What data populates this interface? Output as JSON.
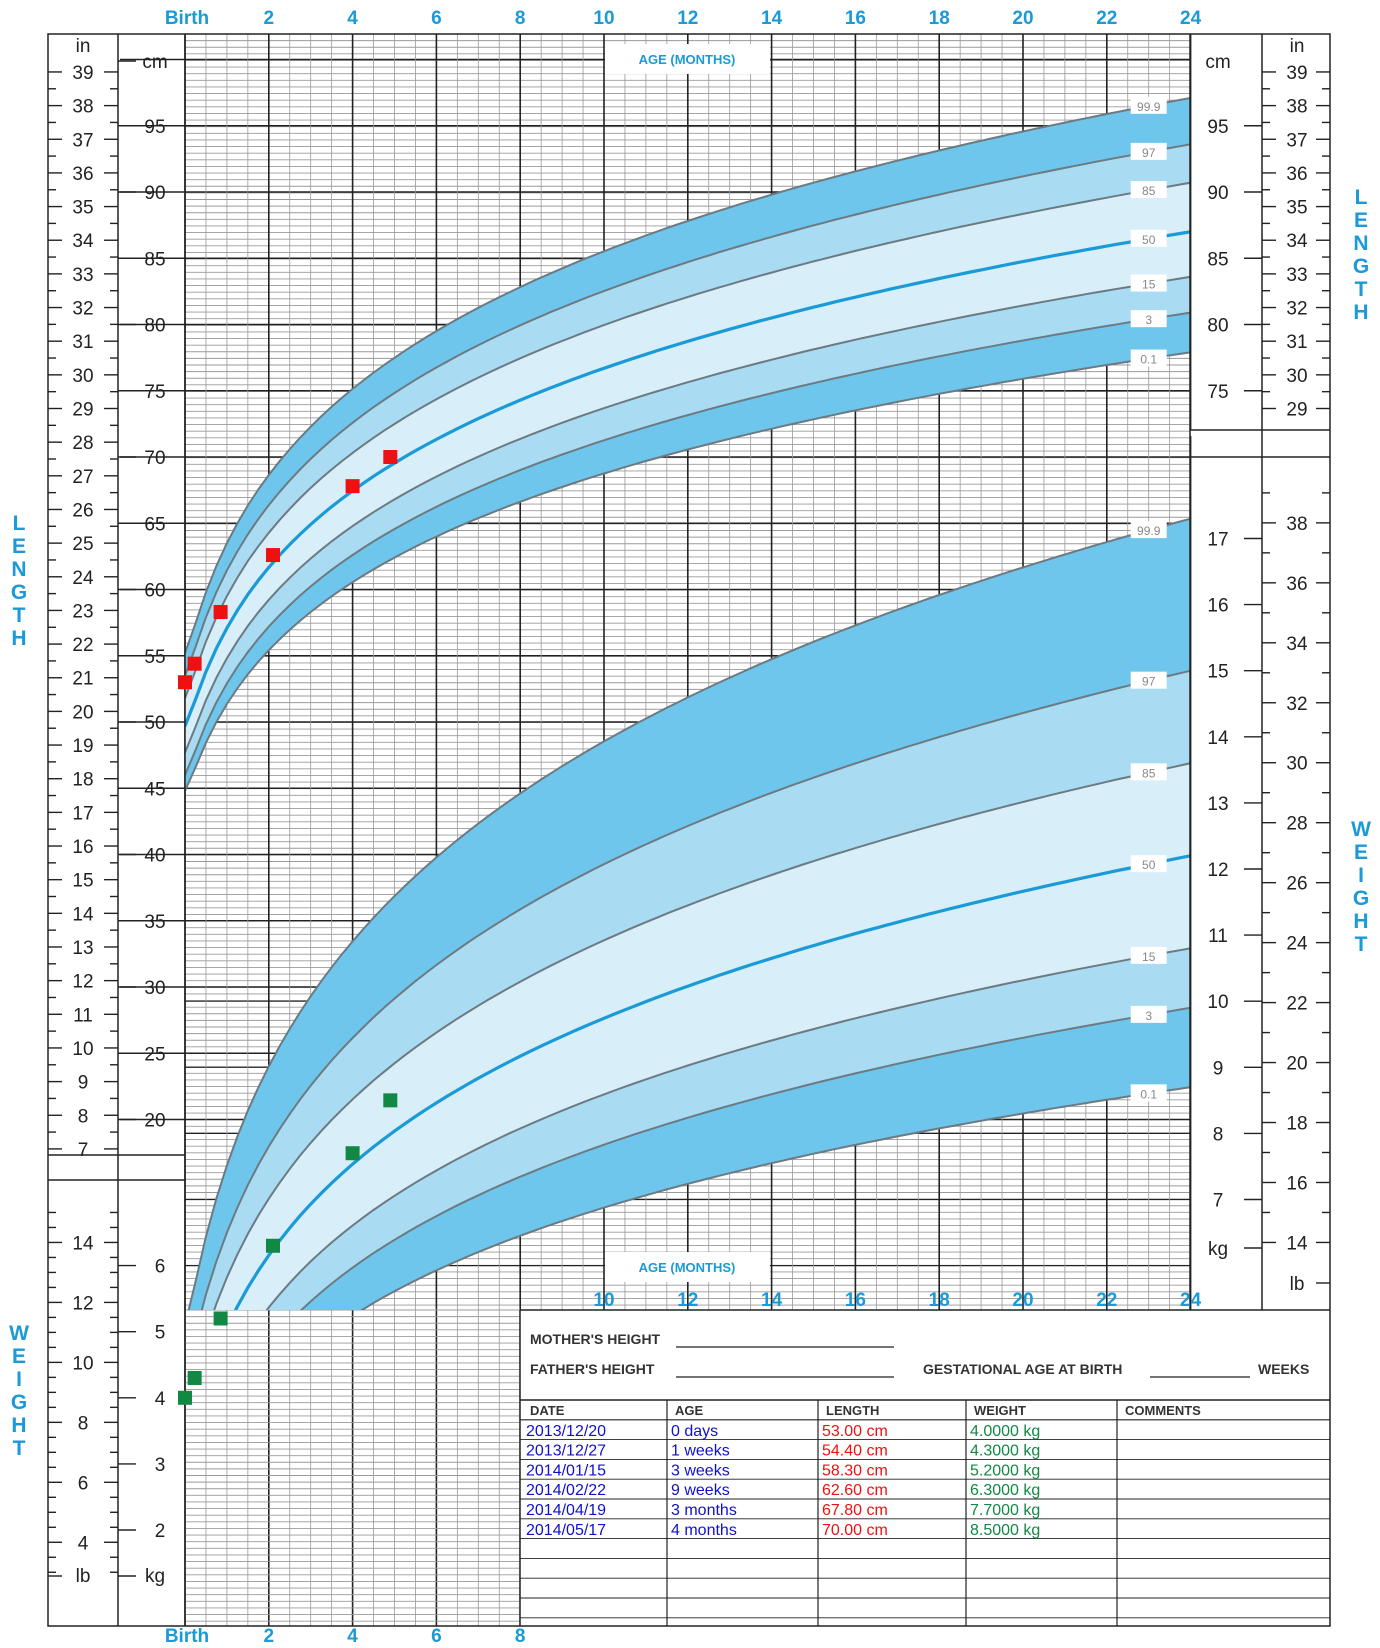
{
  "chart_data": {
    "type": "line",
    "top_age_label": "AGE (MONTHS)",
    "bottom_age_label": "AGE (MONTHS)",
    "x_ticks_top": [
      "Birth",
      "2",
      "4",
      "6",
      "8",
      "10",
      "12",
      "14",
      "16",
      "18",
      "20",
      "22",
      "24"
    ],
    "x_ticks_bottom": [
      "Birth",
      "2",
      "4",
      "6",
      "8"
    ],
    "x_ticks_weight_mid": [
      "10",
      "12",
      "14",
      "16",
      "18",
      "20",
      "22",
      "24"
    ],
    "length_vertical_label": "LENGTH",
    "weight_vertical_label": "WEIGHT",
    "length_unit_in": "in",
    "length_unit_cm": "cm",
    "weight_unit_kg": "kg",
    "weight_unit_lb": "lb",
    "length_cm_ticks": [
      "95",
      "90",
      "85",
      "80",
      "75",
      "70",
      "65",
      "60",
      "55",
      "50",
      "45",
      "40",
      "35",
      "30",
      "25",
      "20"
    ],
    "length_cm_ticks_right": [
      "95",
      "90",
      "85",
      "80",
      "75"
    ],
    "length_in_ticks_left": [
      "39",
      "38",
      "37",
      "36",
      "35",
      "34",
      "33",
      "32",
      "31",
      "30",
      "29",
      "28",
      "27",
      "26",
      "25",
      "24",
      "23",
      "22",
      "21",
      "20",
      "19",
      "18",
      "17",
      "16",
      "15",
      "14",
      "13",
      "12",
      "11",
      "10",
      "9",
      "8",
      "7"
    ],
    "length_in_ticks_right": [
      "39",
      "38",
      "37",
      "36",
      "35",
      "34",
      "33",
      "32",
      "31",
      "30",
      "29"
    ],
    "weight_kg_ticks_left": [
      "6",
      "5",
      "4",
      "3",
      "2"
    ],
    "weight_kg_ticks_right": [
      "17",
      "16",
      "15",
      "14",
      "13",
      "12",
      "11",
      "10",
      "9",
      "8",
      "7"
    ],
    "weight_lb_ticks_left": [
      "14",
      "12",
      "10",
      "8",
      "6",
      "4"
    ],
    "weight_lb_ticks_right": [
      "38",
      "36",
      "34",
      "32",
      "30",
      "28",
      "26",
      "24",
      "22",
      "20",
      "18",
      "16",
      "14"
    ],
    "length_percentiles": [
      {
        "name": "99.9",
        "at_birth": 55.2,
        "at_24": 97.1
      },
      {
        "name": "97",
        "at_birth": 53.5,
        "at_24": 93.6
      },
      {
        "name": "85",
        "at_birth": 51.8,
        "at_24": 90.7
      },
      {
        "name": "50",
        "at_birth": 49.7,
        "at_24": 87.0
      },
      {
        "name": "15",
        "at_birth": 47.7,
        "at_24": 83.6
      },
      {
        "name": "3",
        "at_birth": 46.0,
        "at_24": 80.9
      },
      {
        "name": "0.1",
        "at_birth": 44.8,
        "at_24": 77.9
      }
    ],
    "weight_percentiles": [
      {
        "name": "99.9",
        "at_birth": 5.1,
        "at_24": 17.3
      },
      {
        "name": "97",
        "at_birth": 4.4,
        "at_24": 15.0
      },
      {
        "name": "85",
        "at_birth": 3.9,
        "at_24": 13.6
      },
      {
        "name": "50",
        "at_birth": 3.3,
        "at_24": 12.2
      },
      {
        "name": "15",
        "at_birth": 2.8,
        "at_24": 10.8
      },
      {
        "name": "3",
        "at_birth": 2.4,
        "at_24": 9.9
      },
      {
        "name": "0.1",
        "at_birth": 2.1,
        "at_24": 8.7
      }
    ],
    "measurements": [
      {
        "age_months": 0.0,
        "length_cm": 53.0,
        "weight_kg": 4.0
      },
      {
        "age_months": 0.23,
        "length_cm": 54.4,
        "weight_kg": 4.3
      },
      {
        "age_months": 0.85,
        "length_cm": 58.3,
        "weight_kg": 5.2
      },
      {
        "age_months": 2.1,
        "length_cm": 62.6,
        "weight_kg": 6.3
      },
      {
        "age_months": 4.0,
        "length_cm": 67.8,
        "weight_kg": 7.7
      },
      {
        "age_months": 4.9,
        "length_cm": 70.0,
        "weight_kg": 8.5
      }
    ],
    "colors": {
      "band_outer": "#6ec6ec",
      "band_mid": "#a9dcf3",
      "band_inner": "#d8eef9",
      "median": "#1a9ad6",
      "length_marker": "#ee1111",
      "weight_marker": "#118844",
      "axis_text": "#1a9ad6"
    }
  },
  "form": {
    "mothers_height": "MOTHER'S HEIGHT",
    "fathers_height": "FATHER'S HEIGHT",
    "gestational_age": "GESTATIONAL AGE AT BIRTH",
    "weeks": "WEEKS",
    "headers": [
      "DATE",
      "AGE",
      "LENGTH",
      "WEIGHT",
      "COMMENTS"
    ],
    "rows": [
      {
        "date": "2013/12/20",
        "age": "0 days",
        "length": "53.00 cm",
        "weight": "4.0000 kg"
      },
      {
        "date": "2013/12/27",
        "age": "1 weeks",
        "length": "54.40 cm",
        "weight": "4.3000 kg"
      },
      {
        "date": "2014/01/15",
        "age": "3 weeks",
        "length": "58.30 cm",
        "weight": "5.2000 kg"
      },
      {
        "date": "2014/02/22",
        "age": "9 weeks",
        "length": "62.60 cm",
        "weight": "6.3000 kg"
      },
      {
        "date": "2014/04/19",
        "age": "3 months",
        "length": "67.80 cm",
        "weight": "7.7000 kg"
      },
      {
        "date": "2014/05/17",
        "age": "4 months",
        "length": "70.00 cm",
        "weight": "8.5000 kg"
      }
    ]
  }
}
